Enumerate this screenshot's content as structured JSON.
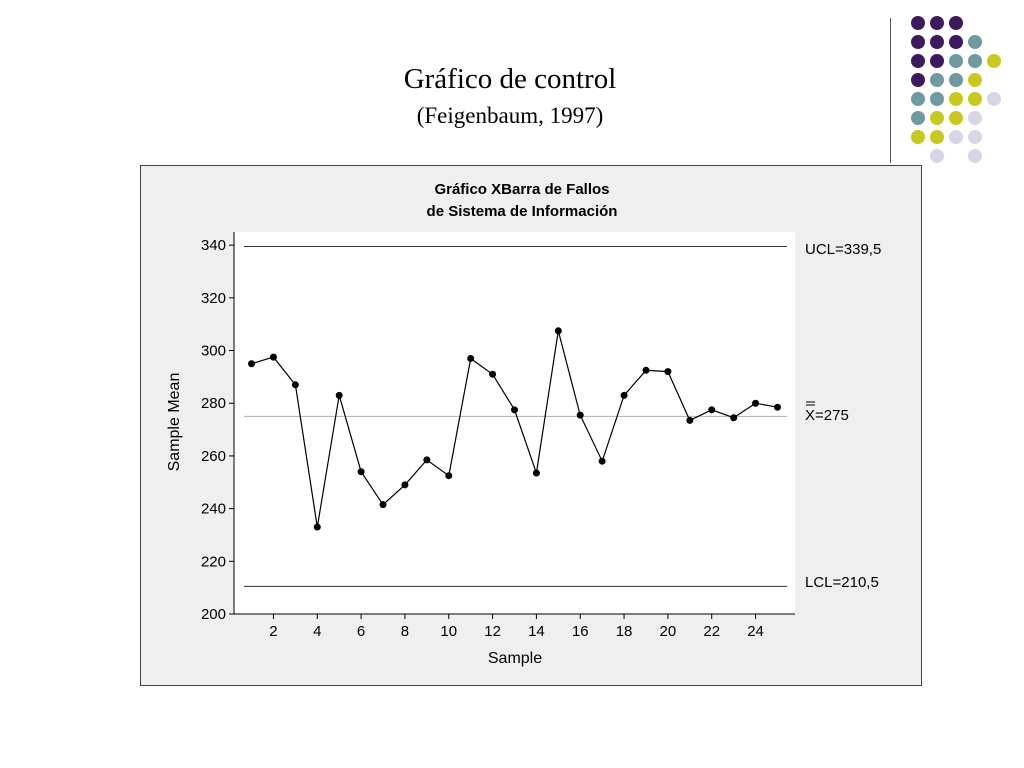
{
  "slide": {
    "title": "Gráfico de control",
    "subtitle": "(Feigenbaum, 1997)"
  },
  "decoration": {
    "dot_colors": [
      "#3d1a5e",
      "#6e9aa0",
      "#c8c81e",
      "#d6d6e6"
    ],
    "dot_grid": [
      [
        0,
        0,
        0,
        -1,
        -1
      ],
      [
        0,
        0,
        0,
        1,
        -1
      ],
      [
        0,
        0,
        1,
        1,
        2
      ],
      [
        0,
        1,
        1,
        2,
        -1
      ],
      [
        1,
        1,
        2,
        2,
        3
      ],
      [
        1,
        2,
        2,
        3,
        -1
      ],
      [
        2,
        2,
        3,
        3,
        -1
      ],
      [
        -1,
        3,
        -1,
        3,
        -1
      ]
    ]
  },
  "chart_data": {
    "type": "line",
    "title_line1": "Gráfico XBarra de Fallos",
    "title_line2": "de Sistema de Información",
    "xlabel": "Sample",
    "ylabel": "Sample Mean",
    "ylim": [
      200,
      345
    ],
    "xlim": [
      0.2,
      25.8
    ],
    "yticks": [
      200,
      220,
      240,
      260,
      280,
      300,
      320,
      340
    ],
    "xticks": [
      2,
      4,
      6,
      8,
      10,
      12,
      14,
      16,
      18,
      20,
      22,
      24
    ],
    "x": [
      1,
      2,
      3,
      4,
      5,
      6,
      7,
      8,
      9,
      10,
      11,
      12,
      13,
      14,
      15,
      16,
      17,
      18,
      19,
      20,
      21,
      22,
      23,
      24,
      25
    ],
    "values": [
      295,
      297.5,
      287,
      233,
      283,
      254,
      241.5,
      249,
      258.5,
      252.5,
      297,
      291,
      277.5,
      253.5,
      307.5,
      275.5,
      258,
      283,
      292.5,
      292,
      273.5,
      277.5,
      274.5,
      280,
      278.5
    ],
    "ucl": {
      "value": 339.5,
      "label_prefix": "UCL=",
      "label_value": "339,5"
    },
    "center": {
      "value": 275,
      "label_prefix": "X=",
      "label_value": "275"
    },
    "lcl": {
      "value": 210.5,
      "label_prefix": "LCL=",
      "label_value": "210,5"
    },
    "grid": false,
    "colors": {
      "series": "#000000",
      "limits": "#333333",
      "center": "#b0b0b0",
      "plot_bg": "#ffffff",
      "frame_bg": "#efefef"
    }
  }
}
